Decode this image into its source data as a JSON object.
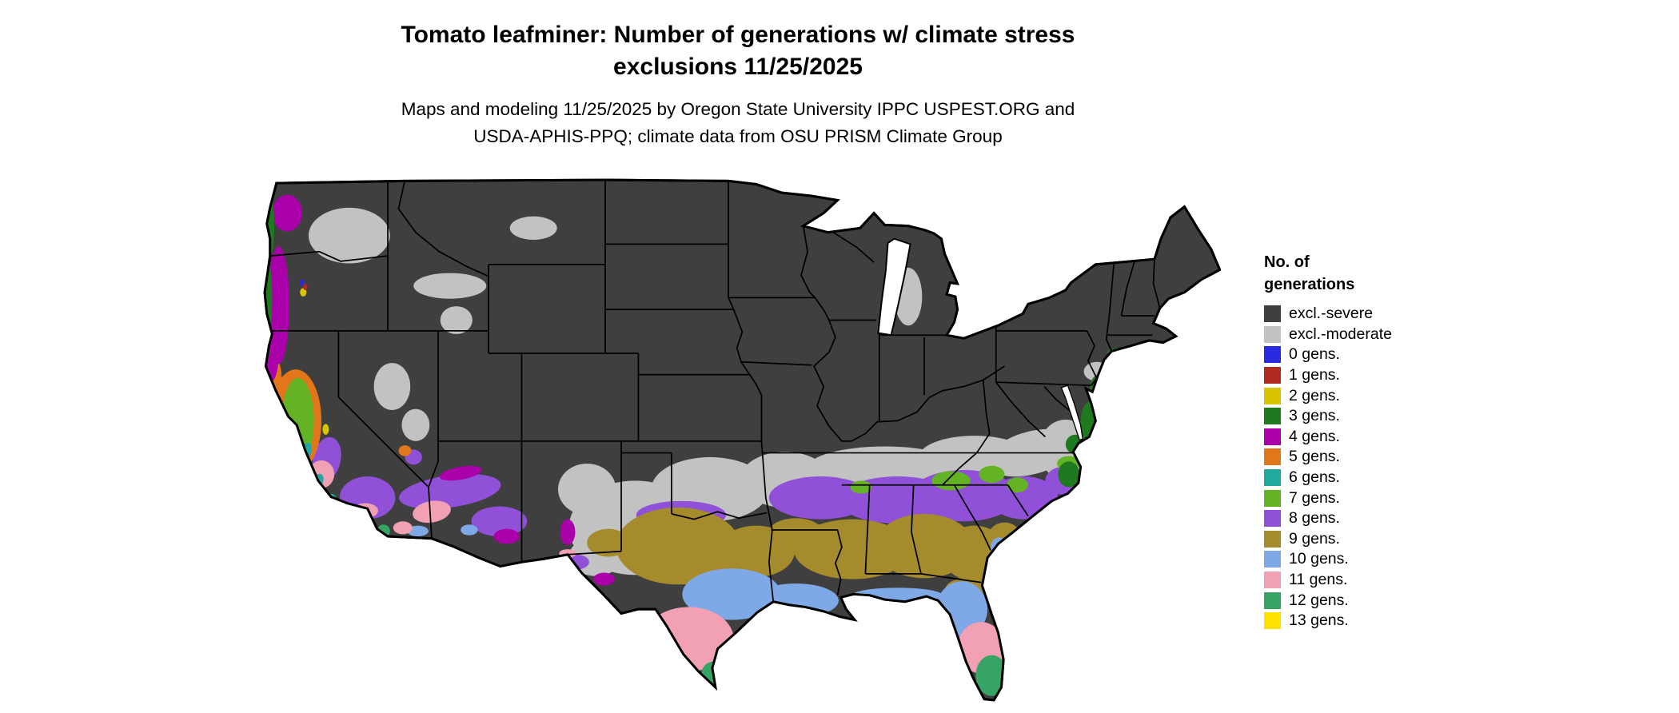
{
  "title": {
    "line1": "Tomato leafminer: Number of generations w/ climate stress",
    "line2": "exclusions 11/25/2025"
  },
  "subtitle": {
    "line1": "Maps and modeling 11/25/2025 by Oregon State University IPPC USPEST.ORG and",
    "line2": "USDA-APHIS-PPQ; climate data from OSU PRISM Climate Group"
  },
  "legend": {
    "title_line1": "No. of",
    "title_line2": "generations",
    "items": [
      {
        "key": "excl_severe",
        "label": "excl.-severe",
        "color": "#3F3F3F"
      },
      {
        "key": "excl_moderate",
        "label": "excl.-moderate",
        "color": "#C2C2C2"
      },
      {
        "key": "gens_0",
        "label": "0 gens.",
        "color": "#2A2AE0"
      },
      {
        "key": "gens_1",
        "label": "1 gens.",
        "color": "#B02A1F"
      },
      {
        "key": "gens_2",
        "label": "2 gens.",
        "color": "#D8C500"
      },
      {
        "key": "gens_3",
        "label": "3 gens.",
        "color": "#1F7A1F"
      },
      {
        "key": "gens_4",
        "label": "4 gens.",
        "color": "#AA00AA"
      },
      {
        "key": "gens_5",
        "label": "5 gens.",
        "color": "#E2761B"
      },
      {
        "key": "gens_6",
        "label": "6 gens.",
        "color": "#1FA9A1"
      },
      {
        "key": "gens_7",
        "label": "7 gens.",
        "color": "#64B324"
      },
      {
        "key": "gens_8",
        "label": "8 gens.",
        "color": "#9050D8"
      },
      {
        "key": "gens_9",
        "label": "9 gens.",
        "color": "#A68B2C"
      },
      {
        "key": "gens_10",
        "label": "10 gens.",
        "color": "#7FA9E6"
      },
      {
        "key": "gens_11",
        "label": "11 gens.",
        "color": "#F2A0B4"
      },
      {
        "key": "gens_12",
        "label": "12 gens.",
        "color": "#35A465"
      },
      {
        "key": "gens_13",
        "label": "13 gens.",
        "color": "#FFE000"
      }
    ]
  },
  "map": {
    "area": "Continental United States with state boundaries",
    "type": "raster choropleth of modeled generation counts",
    "region_classes": {
      "northern_and_interior_us": "excl_severe",
      "band_tx_ok_ar_tn_appalachia_to_va": "excl_moderate",
      "deep_south_upper_band_ms_al_ga_sc": "gens_8",
      "deep_south_lower_band_tx_la_ms_al_ga": "gens_9",
      "gulf_coast_tx_la_n_fl": "gens_10",
      "south_tx_central_fl_phoenix": "gens_11",
      "south_fl_tx_tip_san_diego_coast": "gens_12",
      "florida_keys": "gens_13",
      "pacific_coast_wa_or": [
        "gens_3",
        "gens_4"
      ],
      "california_central_valley": [
        "gens_5",
        "gens_7"
      ],
      "southern_arizona_southern_california": [
        "gens_8",
        "gens_10",
        "gens_11"
      ]
    }
  }
}
